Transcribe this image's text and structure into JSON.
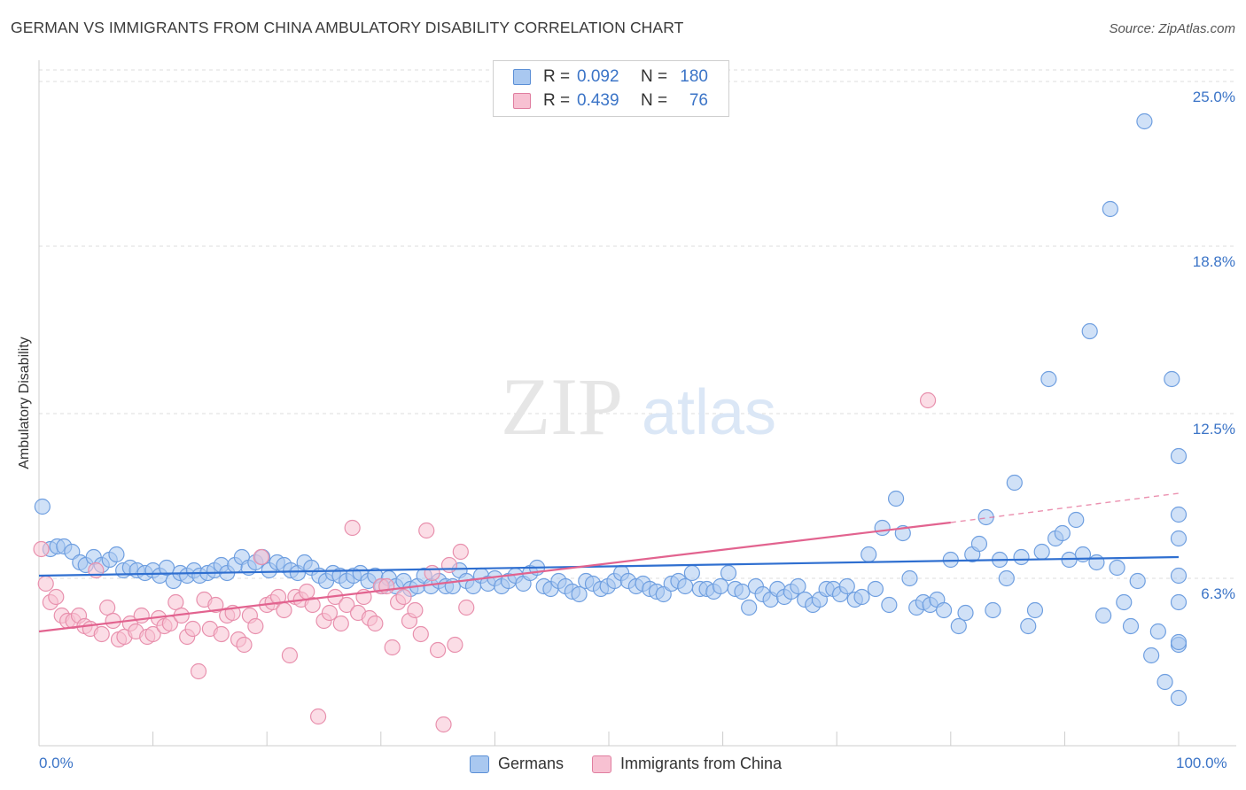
{
  "title": "GERMAN VS IMMIGRANTS FROM CHINA AMBULATORY DISABILITY CORRELATION CHART",
  "source": "Source: ZipAtlas.com",
  "watermark": {
    "zip": "ZIP",
    "atlas": "atlas"
  },
  "legend": {
    "rows": [
      {
        "r_label": "R =",
        "r_value": "0.092",
        "n_label": "N =",
        "n_value": "180",
        "color": "#a9c8f0",
        "border": "#5b8fd6"
      },
      {
        "r_label": "R =",
        "r_value": "0.439",
        "n_label": "N =",
        "n_value": "76",
        "color": "#f7c1d2",
        "border": "#e07ea0"
      }
    ]
  },
  "bottom_legend": [
    {
      "label": "Germans",
      "color": "#a9c8f0",
      "border": "#5b8fd6"
    },
    {
      "label": "Immigrants from China",
      "color": "#f7c1d2",
      "border": "#e07ea0"
    }
  ],
  "chart_data": {
    "type": "scatter",
    "title": "GERMAN VS IMMIGRANTS FROM CHINA AMBULATORY DISABILITY CORRELATION CHART",
    "xlabel": "",
    "ylabel": "Ambulatory Disability",
    "xlim": [
      0,
      100
    ],
    "ylim": [
      0,
      25.6
    ],
    "x_ticks": [
      "0.0%",
      "100.0%"
    ],
    "y_ticks": [
      {
        "value": 6.3,
        "label": "6.3%"
      },
      {
        "value": 12.5,
        "label": "12.5%"
      },
      {
        "value": 18.8,
        "label": "18.8%"
      },
      {
        "value": 25.0,
        "label": "25.0%"
      }
    ],
    "grid": "horizontal dashed",
    "legend_position": "top-center",
    "series": [
      {
        "name": "Germans",
        "color": "#6f9fe0",
        "fill": "#a9c8f0",
        "trend": {
          "x": [
            0,
            100
          ],
          "y": [
            6.4,
            7.1
          ],
          "color": "#2f6fd0",
          "dashed_after": null
        },
        "points": [
          [
            0.3,
            9.0
          ],
          [
            1.0,
            7.4
          ],
          [
            1.6,
            7.5
          ],
          [
            2.2,
            7.5
          ],
          [
            2.9,
            7.3
          ],
          [
            3.6,
            6.9
          ],
          [
            4.1,
            6.8
          ],
          [
            4.8,
            7.1
          ],
          [
            5.5,
            6.8
          ],
          [
            6.2,
            7.0
          ],
          [
            6.8,
            7.2
          ],
          [
            7.4,
            6.6
          ],
          [
            8.0,
            6.7
          ],
          [
            8.6,
            6.6
          ],
          [
            9.3,
            6.5
          ],
          [
            10.0,
            6.6
          ],
          [
            10.6,
            6.4
          ],
          [
            11.2,
            6.7
          ],
          [
            11.8,
            6.2
          ],
          [
            12.4,
            6.5
          ],
          [
            13.0,
            6.4
          ],
          [
            13.6,
            6.6
          ],
          [
            14.1,
            6.4
          ],
          [
            14.8,
            6.5
          ],
          [
            15.4,
            6.6
          ],
          [
            16.0,
            6.8
          ],
          [
            16.5,
            6.5
          ],
          [
            17.2,
            6.8
          ],
          [
            17.8,
            7.1
          ],
          [
            18.4,
            6.7
          ],
          [
            19.0,
            6.9
          ],
          [
            19.6,
            7.1
          ],
          [
            20.2,
            6.6
          ],
          [
            20.9,
            6.9
          ],
          [
            21.5,
            6.8
          ],
          [
            22.1,
            6.6
          ],
          [
            22.7,
            6.5
          ],
          [
            23.3,
            6.9
          ],
          [
            23.9,
            6.7
          ],
          [
            24.6,
            6.4
          ],
          [
            25.2,
            6.2
          ],
          [
            25.8,
            6.5
          ],
          [
            26.4,
            6.4
          ],
          [
            27.0,
            6.2
          ],
          [
            27.6,
            6.4
          ],
          [
            28.2,
            6.5
          ],
          [
            28.9,
            6.2
          ],
          [
            29.5,
            6.4
          ],
          [
            30.1,
            6.0
          ],
          [
            30.7,
            6.3
          ],
          [
            31.3,
            6.0
          ],
          [
            32.0,
            6.2
          ],
          [
            32.6,
            5.9
          ],
          [
            33.2,
            6.0
          ],
          [
            33.8,
            6.4
          ],
          [
            34.4,
            6.0
          ],
          [
            35.1,
            6.2
          ],
          [
            35.7,
            6.0
          ],
          [
            36.3,
            6.0
          ],
          [
            36.9,
            6.6
          ],
          [
            37.5,
            6.2
          ],
          [
            38.1,
            6.0
          ],
          [
            38.8,
            6.4
          ],
          [
            39.4,
            6.1
          ],
          [
            40.0,
            6.3
          ],
          [
            40.6,
            6.0
          ],
          [
            41.2,
            6.2
          ],
          [
            41.8,
            6.4
          ],
          [
            42.5,
            6.1
          ],
          [
            43.1,
            6.5
          ],
          [
            43.7,
            6.7
          ],
          [
            44.3,
            6.0
          ],
          [
            44.9,
            5.9
          ],
          [
            45.6,
            6.2
          ],
          [
            46.2,
            6.0
          ],
          [
            46.8,
            5.8
          ],
          [
            47.4,
            5.7
          ],
          [
            48.0,
            6.2
          ],
          [
            48.6,
            6.1
          ],
          [
            49.3,
            5.9
          ],
          [
            49.9,
            6.0
          ],
          [
            50.5,
            6.2
          ],
          [
            51.1,
            6.5
          ],
          [
            51.7,
            6.2
          ],
          [
            52.4,
            6.0
          ],
          [
            53.0,
            6.1
          ],
          [
            53.6,
            5.9
          ],
          [
            54.2,
            5.8
          ],
          [
            54.8,
            5.7
          ],
          [
            55.5,
            6.1
          ],
          [
            56.1,
            6.2
          ],
          [
            56.7,
            6.0
          ],
          [
            57.3,
            6.5
          ],
          [
            58.0,
            5.9
          ],
          [
            58.6,
            5.9
          ],
          [
            59.2,
            5.8
          ],
          [
            59.8,
            6.0
          ],
          [
            60.5,
            6.5
          ],
          [
            61.1,
            5.9
          ],
          [
            61.7,
            5.8
          ],
          [
            62.3,
            5.2
          ],
          [
            62.9,
            6.0
          ],
          [
            63.5,
            5.7
          ],
          [
            64.2,
            5.5
          ],
          [
            64.8,
            5.9
          ],
          [
            65.4,
            5.6
          ],
          [
            66.0,
            5.8
          ],
          [
            66.6,
            6.0
          ],
          [
            67.2,
            5.5
          ],
          [
            67.9,
            5.3
          ],
          [
            68.5,
            5.5
          ],
          [
            69.1,
            5.9
          ],
          [
            69.7,
            5.9
          ],
          [
            70.3,
            5.7
          ],
          [
            70.9,
            6.0
          ],
          [
            71.6,
            5.5
          ],
          [
            72.2,
            5.6
          ],
          [
            72.8,
            7.2
          ],
          [
            73.4,
            5.9
          ],
          [
            74.0,
            8.2
          ],
          [
            74.6,
            5.3
          ],
          [
            75.2,
            9.3
          ],
          [
            75.8,
            8.0
          ],
          [
            76.4,
            6.3
          ],
          [
            77.0,
            5.2
          ],
          [
            77.6,
            5.4
          ],
          [
            78.2,
            5.3
          ],
          [
            78.8,
            5.5
          ],
          [
            79.4,
            5.1
          ],
          [
            80.0,
            7.0
          ],
          [
            80.7,
            4.5
          ],
          [
            81.3,
            5.0
          ],
          [
            81.9,
            7.2
          ],
          [
            82.5,
            7.6
          ],
          [
            83.1,
            8.6
          ],
          [
            83.7,
            5.1
          ],
          [
            84.3,
            7.0
          ],
          [
            84.9,
            6.3
          ],
          [
            85.6,
            9.9
          ],
          [
            86.2,
            7.1
          ],
          [
            86.8,
            4.5
          ],
          [
            87.4,
            5.1
          ],
          [
            88.0,
            7.3
          ],
          [
            88.6,
            13.8
          ],
          [
            89.2,
            7.8
          ],
          [
            89.8,
            8.0
          ],
          [
            90.4,
            7.0
          ],
          [
            91.0,
            8.5
          ],
          [
            91.6,
            7.2
          ],
          [
            92.2,
            15.6
          ],
          [
            92.8,
            6.9
          ],
          [
            93.4,
            4.9
          ],
          [
            94.0,
            20.2
          ],
          [
            94.6,
            6.7
          ],
          [
            95.2,
            5.4
          ],
          [
            95.8,
            4.5
          ],
          [
            96.4,
            6.2
          ],
          [
            97.0,
            23.5
          ],
          [
            97.6,
            3.4
          ],
          [
            98.2,
            4.3
          ],
          [
            98.8,
            2.4
          ],
          [
            99.4,
            13.8
          ],
          [
            100.0,
            10.9
          ],
          [
            100.6,
            6.4
          ],
          [
            101.2,
            3.8
          ],
          [
            101.8,
            1.8
          ],
          [
            102.4,
            7.8
          ],
          [
            102.9,
            3.9
          ],
          [
            103.3,
            8.7
          ],
          [
            103.8,
            5.4
          ]
        ]
      },
      {
        "name": "Immigrants from China",
        "color": "#e890ad",
        "fill": "#f7c1d2",
        "trend": {
          "x": [
            0,
            80,
            100
          ],
          "y": [
            4.3,
            8.4,
            9.5
          ],
          "color": "#e2638f",
          "dashed_after": 80
        },
        "points": [
          [
            0.2,
            7.4
          ],
          [
            0.6,
            6.1
          ],
          [
            1.0,
            5.4
          ],
          [
            1.5,
            5.6
          ],
          [
            2.0,
            4.9
          ],
          [
            2.5,
            4.7
          ],
          [
            3.0,
            4.7
          ],
          [
            3.5,
            4.9
          ],
          [
            4.0,
            4.5
          ],
          [
            4.5,
            4.4
          ],
          [
            5.0,
            6.6
          ],
          [
            5.5,
            4.2
          ],
          [
            6.0,
            5.2
          ],
          [
            6.5,
            4.7
          ],
          [
            7.0,
            4.0
          ],
          [
            7.5,
            4.1
          ],
          [
            8.0,
            4.6
          ],
          [
            8.5,
            4.3
          ],
          [
            9.0,
            4.9
          ],
          [
            9.5,
            4.1
          ],
          [
            10.0,
            4.2
          ],
          [
            10.5,
            4.8
          ],
          [
            11.0,
            4.5
          ],
          [
            11.5,
            4.6
          ],
          [
            12.0,
            5.4
          ],
          [
            12.5,
            4.9
          ],
          [
            13.0,
            4.1
          ],
          [
            13.5,
            4.4
          ],
          [
            14.0,
            2.8
          ],
          [
            14.5,
            5.5
          ],
          [
            15.0,
            4.4
          ],
          [
            15.5,
            5.3
          ],
          [
            16.0,
            4.2
          ],
          [
            16.5,
            4.9
          ],
          [
            17.0,
            5.0
          ],
          [
            17.5,
            4.0
          ],
          [
            18.0,
            3.8
          ],
          [
            18.5,
            4.9
          ],
          [
            19.0,
            4.5
          ],
          [
            19.5,
            7.1
          ],
          [
            20.0,
            5.3
          ],
          [
            20.5,
            5.4
          ],
          [
            21.0,
            5.6
          ],
          [
            21.5,
            5.1
          ],
          [
            22.0,
            3.4
          ],
          [
            22.5,
            5.6
          ],
          [
            23.0,
            5.5
          ],
          [
            23.5,
            5.8
          ],
          [
            24.0,
            5.3
          ],
          [
            24.5,
            1.1
          ],
          [
            25.0,
            4.7
          ],
          [
            25.5,
            5.0
          ],
          [
            26.0,
            5.6
          ],
          [
            26.5,
            4.6
          ],
          [
            27.0,
            5.3
          ],
          [
            27.5,
            8.2
          ],
          [
            28.0,
            5.0
          ],
          [
            28.5,
            5.6
          ],
          [
            29.0,
            4.8
          ],
          [
            29.5,
            4.6
          ],
          [
            30.0,
            6.0
          ],
          [
            30.5,
            6.0
          ],
          [
            31.0,
            3.7
          ],
          [
            31.5,
            5.4
          ],
          [
            32.0,
            5.6
          ],
          [
            32.5,
            4.7
          ],
          [
            33.0,
            5.1
          ],
          [
            33.5,
            4.2
          ],
          [
            34.0,
            8.1
          ],
          [
            34.5,
            6.5
          ],
          [
            35.0,
            3.6
          ],
          [
            35.5,
            0.8
          ],
          [
            36.0,
            6.8
          ],
          [
            36.5,
            3.8
          ],
          [
            37.0,
            7.3
          ],
          [
            37.5,
            5.2
          ],
          [
            78.0,
            13.0
          ]
        ]
      }
    ]
  }
}
